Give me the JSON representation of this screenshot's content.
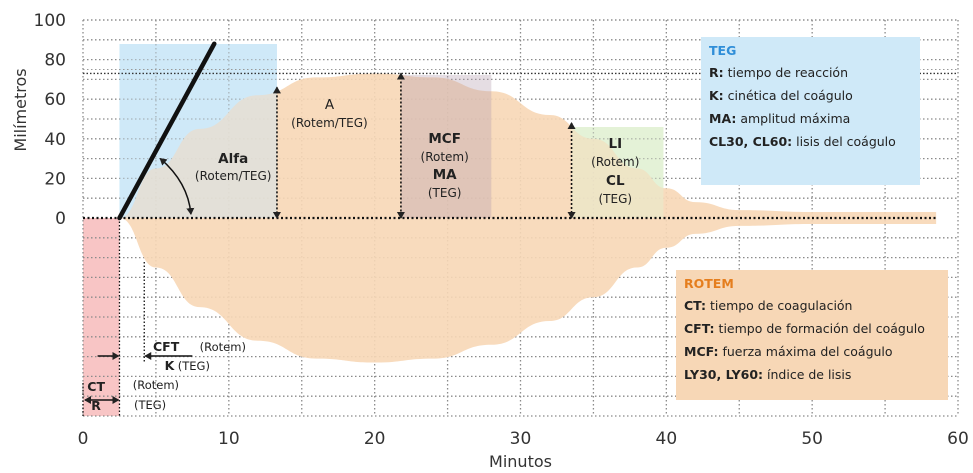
{
  "chart_data": {
    "type": "area",
    "xlabel": "Minutos",
    "ylabel": "Milímetros",
    "xlim": [
      0,
      60
    ],
    "ylim": [
      0,
      100
    ],
    "x_ticks": [
      "0",
      "10",
      "20",
      "30",
      "40",
      "50",
      "60"
    ],
    "y_ticks": [
      "0",
      "20",
      "40",
      "60",
      "80",
      "100"
    ],
    "grid": true,
    "colors": {
      "trace": "#f7d7b6",
      "teg_zone": "#cfe9f8",
      "ct_zone": "#f8c5c5",
      "lysis_zone": "#e4f2d8",
      "teg_title": "#2f8ed8",
      "rotem_title": "#e57e1e"
    },
    "trace_upper": {
      "x": [
        2.5,
        5,
        8,
        12,
        16,
        20,
        24,
        28,
        32,
        35,
        38,
        40,
        42,
        45,
        50,
        58.5
      ],
      "y": [
        0,
        25,
        45,
        62,
        71,
        73,
        71,
        64,
        52,
        40,
        25,
        15,
        8,
        4,
        3,
        3
      ]
    },
    "alpha_line": {
      "x": [
        2.5,
        9
      ],
      "y": [
        0,
        88
      ]
    },
    "annotations": {
      "alfa": [
        "Alfa",
        "(Rotem/TEG)"
      ],
      "a": [
        "A",
        "(Rotem/TEG)"
      ],
      "mcf": [
        "MCF",
        "(Rotem)",
        "MA",
        "(TEG)"
      ],
      "li": [
        "LI",
        "(Rotem)",
        "CL",
        "(TEG)"
      ],
      "cft": [
        "CFT",
        "(Rotem)",
        "K",
        "(TEG)"
      ],
      "ct": [
        "CT",
        "(Rotem)",
        "R",
        "(TEG)"
      ]
    }
  },
  "legend_teg": {
    "title": "TEG",
    "items": [
      {
        "abbr": "R:",
        "desc": "tiempo de reacción"
      },
      {
        "abbr": "K:",
        "desc": "cinética del coágulo"
      },
      {
        "abbr": "MA:",
        "desc": "amplitud máxima"
      },
      {
        "abbr": "CL30, CL60:",
        "desc": "lisis del coágulo"
      }
    ]
  },
  "legend_rotem": {
    "title": "ROTEM",
    "items": [
      {
        "abbr": "CT:",
        "desc": "tiempo de coagulación"
      },
      {
        "abbr": "CFT:",
        "desc": "tiempo de formación del coágulo"
      },
      {
        "abbr": "MCF:",
        "desc": "fuerza máxima del coágulo"
      },
      {
        "abbr": "LY30, LY60:",
        "desc": "índice de lisis"
      }
    ]
  }
}
